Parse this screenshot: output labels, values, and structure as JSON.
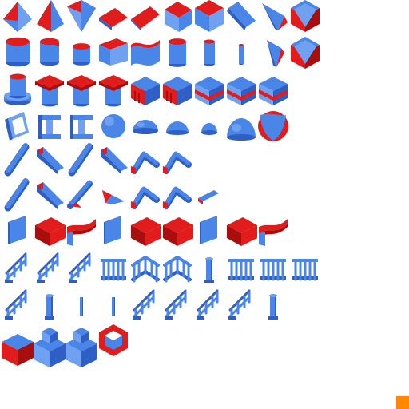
{
  "palette": {
    "blue": "#4a86e8",
    "blue_light": "#6fa1f0",
    "blue_dark": "#2f5fc4",
    "red": "#e01c1c",
    "red_dark": "#a80e0e",
    "marker": "#ff8800",
    "background": "#ffffff"
  },
  "rows": [
    {
      "name": "row-roof-wedges",
      "tiles": [
        "roof-split",
        "pyramid",
        "pyramid-corner",
        "ramp-flat",
        "ramp-flat-tall",
        "roof-block",
        "roof-block-red",
        "slope-plate",
        "slope-corner",
        "diamond-cap"
      ]
    },
    {
      "name": "row-cylinders",
      "tiles": [
        "cylinder-wide",
        "cylinder-sliced",
        "cylinder-small",
        "wide-box-red",
        "curved-wall",
        "cylinder-tall",
        "cylinder-thin",
        "pipe-thin",
        "spike",
        "diamond-cap"
      ]
    },
    {
      "name": "row-pillars-blocks",
      "tiles": [
        "column-base",
        "cap-pillar",
        "cap-pillar",
        "cap-pillar",
        "crate",
        "crate",
        "crate-band",
        "crate-band",
        "crate-band"
      ]
    },
    {
      "name": "row-frames-domes",
      "tiles": [
        "frame",
        "i-beam",
        "i-beam",
        "sphere",
        "dome-half",
        "dome-quarter",
        "dome-small",
        "dome-large",
        "dome-faceted"
      ]
    },
    {
      "name": "row-beams",
      "tiles": [
        "beam-steep",
        "beam-flat",
        "beam-steep",
        "beam-flat",
        "beam-bent",
        "beam-bent"
      ]
    },
    {
      "name": "row-beams-alt",
      "tiles": [
        "beam-steep",
        "beam-flat",
        "ramp-diag",
        "wedge-small",
        "beam-bent",
        "beam-bent",
        "bar-small"
      ]
    },
    {
      "name": "row-walls",
      "tiles": [
        "wall-panel",
        "cube-red",
        "curved-wall-red",
        "wall-panel",
        "cube-red",
        "cube-red",
        "wall-panel",
        "cube-red",
        "curved-wall-red"
      ]
    },
    {
      "name": "row-railings",
      "tiles": [
        "stair-rail",
        "stair-rail",
        "stair-rail",
        "fence-gate",
        "fence-double",
        "fence-double",
        "post",
        "fence-gate",
        "fence-gate",
        "fence-gate"
      ]
    },
    {
      "name": "row-posts",
      "tiles": [
        "stair-rail",
        "post",
        "post-thin",
        "post-thin",
        "stair-rail",
        "stair-rail",
        "stair-rail",
        "stair-rail",
        "post"
      ]
    },
    {
      "name": "row-steps",
      "tiles": [
        "step-block",
        "step-stack",
        "step-stack",
        "hex-ring"
      ]
    }
  ]
}
